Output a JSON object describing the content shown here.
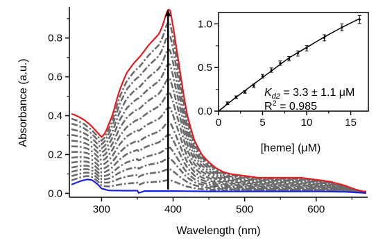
{
  "chart_data": [
    {
      "type": "line",
      "xlabel": "Wavelength (nm)",
      "ylabel": "Absorbance (a.u.)",
      "xlim": [
        255,
        672
      ],
      "ylim": [
        -0.02,
        0.96
      ],
      "x_ticks": [
        "300",
        "400",
        "500",
        "600"
      ],
      "x_tick_values": [
        300,
        400,
        500,
        600
      ],
      "y_ticks": [
        "0.0",
        "0.2",
        "0.4",
        "0.6",
        "0.8"
      ],
      "y_tick_values": [
        0.0,
        0.2,
        0.4,
        0.6,
        0.8
      ],
      "grid": false,
      "legend": "none",
      "final_spectrum": {
        "color": "#e8191c",
        "x": [
          258,
          265,
          275,
          285,
          295,
          300,
          305,
          315,
          325,
          335,
          345,
          355,
          365,
          370,
          375,
          380,
          385,
          390,
          393,
          396,
          400,
          405,
          410,
          415,
          420,
          425,
          430,
          440,
          450,
          460,
          470,
          480,
          500,
          520,
          550,
          580,
          600,
          620,
          640,
          655,
          665,
          670
        ],
        "y": [
          0.41,
          0.4,
          0.38,
          0.35,
          0.31,
          0.29,
          0.31,
          0.4,
          0.53,
          0.62,
          0.67,
          0.71,
          0.76,
          0.78,
          0.8,
          0.82,
          0.86,
          0.92,
          0.95,
          0.94,
          0.86,
          0.74,
          0.62,
          0.5,
          0.4,
          0.33,
          0.27,
          0.2,
          0.16,
          0.13,
          0.11,
          0.1,
          0.09,
          0.08,
          0.08,
          0.08,
          0.07,
          0.06,
          0.04,
          0.02,
          0.01,
          0.01
        ]
      },
      "initial_spectrum": {
        "color": "#1a22e0",
        "x": [
          258,
          265,
          272,
          280,
          287,
          295,
          300,
          310,
          330,
          350,
          352,
          360,
          400,
          450,
          500,
          550,
          600,
          640,
          660,
          670
        ],
        "y": [
          0.045,
          0.055,
          0.065,
          0.072,
          0.068,
          0.045,
          0.025,
          0.015,
          0.014,
          0.014,
          0.002,
          0.012,
          0.012,
          0.01,
          0.01,
          0.01,
          0.01,
          0.008,
          0.004,
          0.002
        ]
      },
      "intermediate_spectra": {
        "color": "#6b6b6b",
        "style": "dash-dot",
        "scale_factors": [
          0.06,
          0.12,
          0.18,
          0.24,
          0.31,
          0.38,
          0.46,
          0.54,
          0.62,
          0.7,
          0.78,
          0.86,
          0.93
        ]
      },
      "arrow": {
        "x": 393,
        "y_from": 0.02,
        "y_to": 0.93
      }
    },
    {
      "type": "scatter",
      "inset": true,
      "xlabel": "[heme] (μM)",
      "ylabel": "",
      "xlim": [
        0,
        17
      ],
      "ylim": [
        0,
        1.13
      ],
      "x_ticks": [
        "0",
        "5",
        "10",
        "15"
      ],
      "x_tick_values": [
        0,
        5,
        10,
        15
      ],
      "y_ticks": [
        "0.0",
        "0.5",
        "1.0"
      ],
      "y_tick_values": [
        0.0,
        0.5,
        1.0
      ],
      "points": {
        "x": [
          1,
          2,
          3,
          4,
          5,
          6,
          7,
          8,
          9,
          10,
          12,
          14,
          16
        ],
        "y": [
          0.09,
          0.16,
          0.22,
          0.29,
          0.4,
          0.47,
          0.55,
          0.6,
          0.66,
          0.72,
          0.84,
          0.96,
          1.05
        ],
        "err": [
          0.015,
          0.015,
          0.015,
          0.02,
          0.02,
          0.025,
          0.025,
          0.025,
          0.03,
          0.03,
          0.035,
          0.04,
          0.045
        ]
      },
      "fit_line": {
        "x": [
          0,
          2,
          4,
          6,
          8,
          10,
          12,
          14,
          16
        ],
        "y": [
          0.0,
          0.16,
          0.31,
          0.46,
          0.61,
          0.73,
          0.85,
          0.96,
          1.06
        ]
      },
      "annotation": {
        "kd_symbol": "K",
        "kd_sub": "d2",
        "kd_value": " = 3.3 ± 1.1 μM",
        "r2_label": "R",
        "r2_sup": "2",
        "r2_value": " = 0.985"
      }
    }
  ]
}
